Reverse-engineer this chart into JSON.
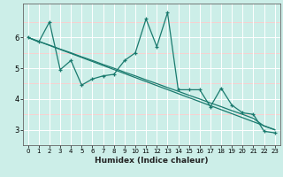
{
  "xlabel": "Humidex (Indice chaleur)",
  "x_data": [
    0,
    1,
    2,
    3,
    4,
    5,
    6,
    7,
    8,
    9,
    10,
    11,
    12,
    13,
    14,
    15,
    16,
    17,
    18,
    19,
    20,
    21,
    22,
    23
  ],
  "line1_y": [
    6.0,
    5.85,
    6.5,
    4.95,
    5.25,
    4.45,
    4.65,
    4.75,
    4.8,
    5.25,
    5.5,
    6.6,
    5.7,
    6.8,
    4.3,
    4.3,
    4.3,
    3.75,
    4.35,
    3.8,
    3.55,
    3.5,
    2.95,
    2.9
  ],
  "line2_y": [
    6.0,
    5.87,
    5.75,
    5.62,
    5.5,
    5.37,
    5.25,
    5.12,
    5.0,
    4.87,
    4.75,
    4.62,
    4.5,
    4.37,
    4.25,
    4.12,
    4.0,
    3.87,
    3.75,
    3.62,
    3.5,
    3.37,
    3.12,
    3.0
  ],
  "trend_y": [
    6.0,
    5.87,
    5.74,
    5.61,
    5.48,
    5.35,
    5.22,
    5.09,
    4.96,
    4.83,
    4.7,
    4.57,
    4.44,
    4.31,
    4.18,
    4.05,
    3.92,
    3.79,
    3.66,
    3.53,
    3.4,
    3.27,
    3.14,
    3.0
  ],
  "bg_color": "#cceee8",
  "line_color": "#1a7a6e",
  "grid_major_color": "#ffffff",
  "grid_minor_color": "#ffcccc",
  "ylim": [
    2.5,
    7.1
  ],
  "xlim": [
    -0.5,
    23.5
  ],
  "yticks": [
    3,
    4,
    5,
    6
  ],
  "xticks": [
    0,
    1,
    2,
    3,
    4,
    5,
    6,
    7,
    8,
    9,
    10,
    11,
    12,
    13,
    14,
    15,
    16,
    17,
    18,
    19,
    20,
    21,
    22,
    23
  ]
}
